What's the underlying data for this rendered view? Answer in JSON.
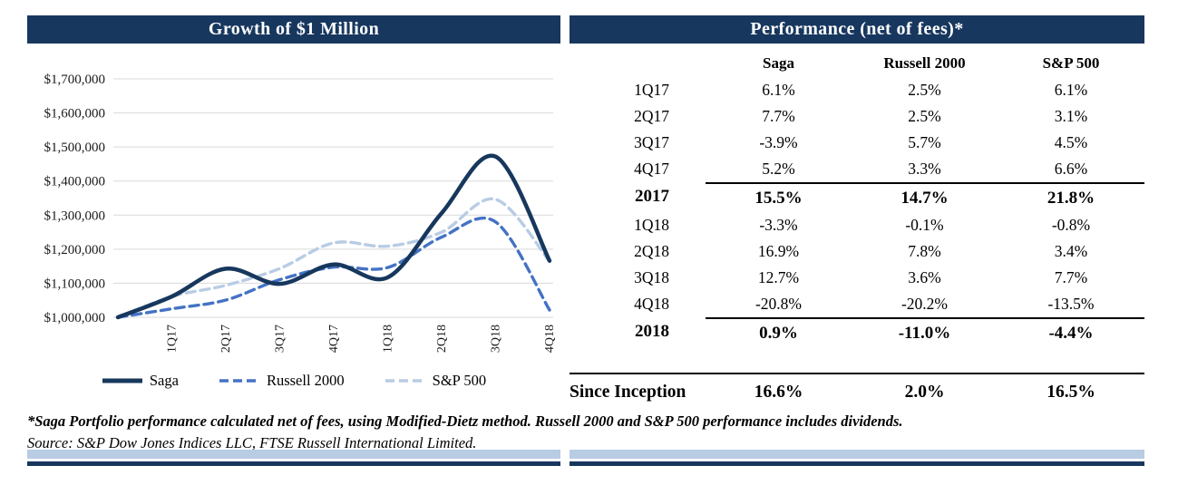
{
  "footnotes": {
    "line1": "*Saga Portfolio performance calculated net of fees, using Modified-Dietz method. Russell 2000 and S&P 500 performance includes dividends.",
    "line2": "Source: S&P Dow Jones Indices LLC, FTSE Russell International Limited."
  },
  "colors": {
    "header_bg": "#17375e",
    "accent_light": "#b8cce4",
    "grid": "#d9d9d9",
    "saga": "#17375d",
    "russell_2000": "#4472c4",
    "sp500": "#b8cce4"
  },
  "chart_data": [
    {
      "type": "line",
      "title": "Growth of $1 Million",
      "categories": [
        "1Q17",
        "2Q17",
        "3Q17",
        "4Q17",
        "1Q18",
        "2Q18",
        "3Q18",
        "4Q18"
      ],
      "start_value": 1000000,
      "series": [
        {
          "name": "Saga",
          "color": "#17375d",
          "dash": "solid",
          "values": [
            1061000,
            1142700,
            1098100,
            1155200,
            1117100,
            1305900,
            1471800,
            1166100
          ]
        },
        {
          "name": "Russell 2000",
          "color": "#4472c4",
          "dash": "dashed",
          "values": [
            1025000,
            1050600,
            1110500,
            1147200,
            1146000,
            1235400,
            1279900,
            1021300
          ]
        },
        {
          "name": "S&P 500",
          "color": "#b8cce4",
          "dash": "dashed",
          "values": [
            1061000,
            1093900,
            1143100,
            1218600,
            1208800,
            1249900,
            1346200,
            1164500
          ]
        }
      ],
      "ylim": [
        1000000,
        1700000
      ],
      "y_tick_step": 100000,
      "y_tick_labels": [
        "$1,700,000",
        "$1,600,000",
        "$1,500,000",
        "$1,400,000",
        "$1,300,000",
        "$1,200,000",
        "$1,100,000",
        "$1,000,000"
      ],
      "grid": true,
      "legend_position": "bottom"
    },
    {
      "type": "table",
      "title": "Performance (net of fees)*",
      "columns": [
        "",
        "Saga",
        "Russell 2000",
        "S&P 500"
      ],
      "rows": [
        {
          "label": "1Q17",
          "values": [
            "6.1%",
            "2.5%",
            "6.1%"
          ],
          "bold": false,
          "rule_above": false
        },
        {
          "label": "2Q17",
          "values": [
            "7.7%",
            "2.5%",
            "3.1%"
          ],
          "bold": false,
          "rule_above": false
        },
        {
          "label": "3Q17",
          "values": [
            "-3.9%",
            "5.7%",
            "4.5%"
          ],
          "bold": false,
          "rule_above": false
        },
        {
          "label": "4Q17",
          "values": [
            "5.2%",
            "3.3%",
            "6.6%"
          ],
          "bold": false,
          "rule_above": false
        },
        {
          "label": "2017",
          "values": [
            "15.5%",
            "14.7%",
            "21.8%"
          ],
          "bold": true,
          "rule_above": true
        },
        {
          "label": "1Q18",
          "values": [
            "-3.3%",
            "-0.1%",
            "-0.8%"
          ],
          "bold": false,
          "rule_above": false
        },
        {
          "label": "2Q18",
          "values": [
            "16.9%",
            "7.8%",
            "3.4%"
          ],
          "bold": false,
          "rule_above": false
        },
        {
          "label": "3Q18",
          "values": [
            "12.7%",
            "3.6%",
            "7.7%"
          ],
          "bold": false,
          "rule_above": false
        },
        {
          "label": "4Q18",
          "values": [
            "-20.8%",
            "-20.2%",
            "-13.5%"
          ],
          "bold": false,
          "rule_above": false
        },
        {
          "label": "2018",
          "values": [
            "0.9%",
            "-11.0%",
            "-4.4%"
          ],
          "bold": true,
          "rule_above": true
        }
      ],
      "footer_row": {
        "label": "Since Inception",
        "values": [
          "16.6%",
          "2.0%",
          "16.5%"
        ]
      }
    }
  ]
}
